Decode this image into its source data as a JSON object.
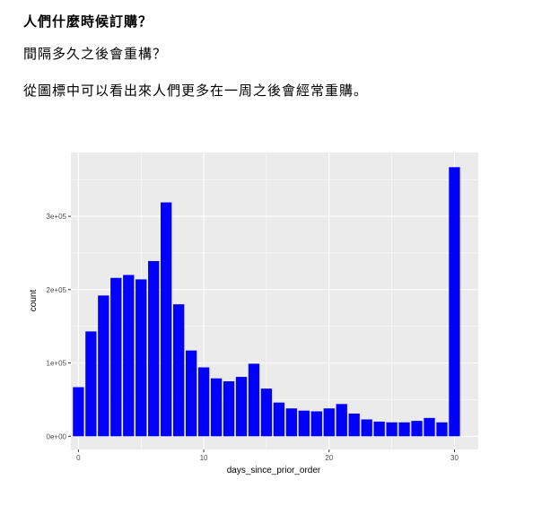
{
  "text": {
    "heading": "人們什麼時候訂購？",
    "subheading": "間隔多久之後會重構？",
    "paragraph": "從圖標中可以看出來人們更多在一周之後會經常重購。"
  },
  "chart_data": {
    "type": "bar",
    "xlabel": "days_since_prior_order",
    "ylabel": "count",
    "x": [
      0,
      1,
      2,
      3,
      4,
      5,
      6,
      7,
      8,
      9,
      10,
      11,
      12,
      13,
      14,
      15,
      16,
      17,
      18,
      19,
      20,
      21,
      22,
      23,
      24,
      25,
      26,
      27,
      28,
      29,
      30
    ],
    "values": [
      67000,
      143000,
      192000,
      216000,
      220000,
      214000,
      239000,
      319000,
      180000,
      117000,
      94000,
      79000,
      75000,
      81000,
      99000,
      65000,
      46000,
      38000,
      35000,
      34000,
      38000,
      44000,
      31000,
      23000,
      20000,
      19000,
      19000,
      21000,
      25000,
      19000,
      367000
    ],
    "xticks": [
      0,
      10,
      20,
      30
    ],
    "xtick_labels": [
      "0",
      "10",
      "20",
      "30"
    ],
    "yticks": [
      0,
      100000,
      200000,
      300000
    ],
    "ytick_labels": [
      "0e+00",
      "1e+05",
      "2e+05",
      "3e+05"
    ],
    "xlim": [
      -0.6,
      31.9
    ],
    "ylim": [
      -18000,
      387000
    ],
    "bar_color": "#0000FF",
    "panel_color": "#EBEBEB",
    "grid": true,
    "legend": "none"
  }
}
